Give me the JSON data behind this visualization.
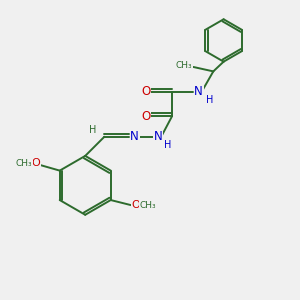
{
  "background_color": "#f0f0f0",
  "bond_color": "#2d6b2d",
  "nitrogen_color": "#0000cc",
  "oxygen_color": "#cc0000",
  "lw": 1.4,
  "figsize": [
    3.0,
    3.0
  ],
  "dpi": 100,
  "xlim": [
    0,
    10
  ],
  "ylim": [
    0,
    10
  ]
}
